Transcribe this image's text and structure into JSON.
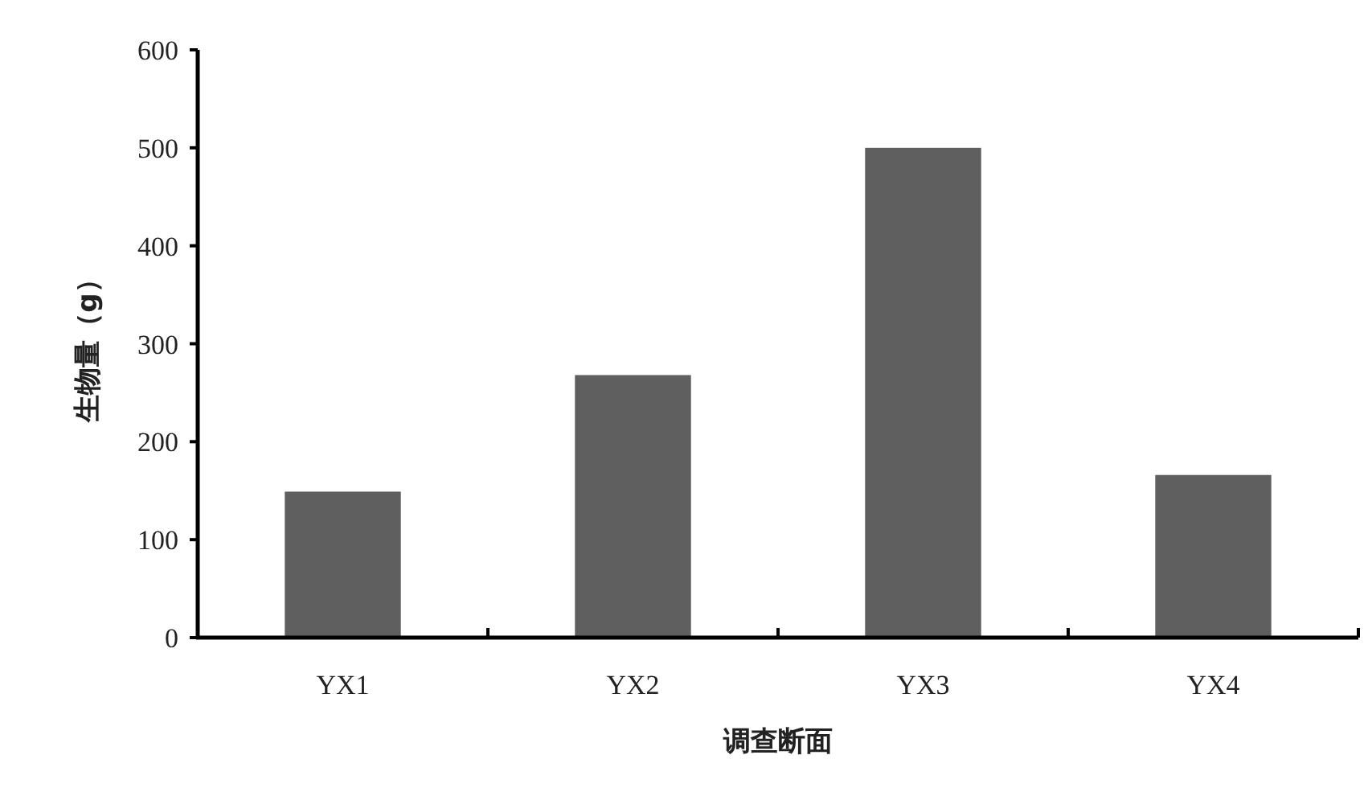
{
  "chart_data": {
    "type": "bar",
    "xlabel": "调查断面",
    "ylabel": "生物量（g）",
    "categories": [
      "YX1",
      "YX2",
      "YX3",
      "YX4"
    ],
    "values": [
      149,
      268,
      500,
      166
    ],
    "color": "#5f5f5f",
    "ylim": [
      0,
      600
    ],
    "yticks": [
      0,
      100,
      200,
      300,
      400,
      500,
      600
    ]
  }
}
